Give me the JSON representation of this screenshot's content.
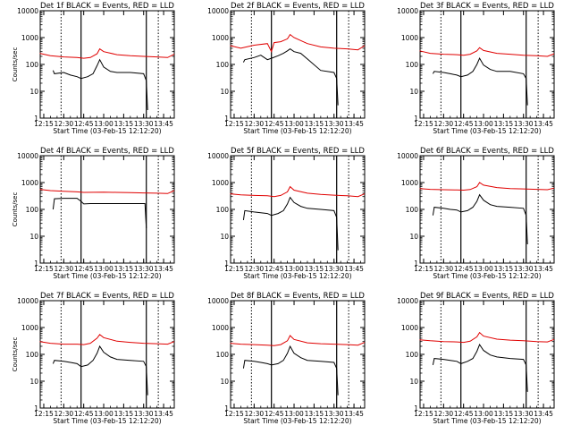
{
  "figure": {
    "xlabel": "Start Time (03-Feb-15 12:12:20)",
    "ylabel": "Counts/sec",
    "x_tick_labels": [
      "12:15",
      "12:30",
      "12:45",
      "13:00",
      "13:15",
      "13:30",
      "13:45"
    ],
    "y_tick_labels": [
      "1",
      "10",
      "100",
      "1000",
      "10000"
    ],
    "colors": {
      "events": "#000000",
      "lld": "#e00000",
      "axes": "#000000"
    }
  },
  "chart_data": [
    {
      "type": "line",
      "title": "Det 1f BLACK = Events, RED = LLD",
      "xlim": [
        "12:12:20",
        "13:53:00"
      ],
      "ylim": [
        1,
        10000
      ],
      "yscale": "log",
      "markers": [
        "12:43",
        "13:32"
      ],
      "dotted_lines": [
        "12:28",
        "13:41"
      ],
      "events": {
        "x": [
          "12:22",
          "12:23",
          "12:30",
          "12:35",
          "12:40",
          "12:43",
          "12:48",
          "12:52",
          "12:55",
          "12:57",
          "13:00",
          "13:05",
          "13:10",
          "13:20",
          "13:30",
          "13:32",
          "13:33"
        ],
        "y": [
          60,
          45,
          50,
          40,
          35,
          30,
          35,
          45,
          90,
          150,
          80,
          55,
          50,
          50,
          45,
          25,
          2
        ]
      },
      "lld": {
        "x": [
          "12:12",
          "12:20",
          "12:30",
          "12:40",
          "12:45",
          "12:50",
          "12:55",
          "12:57",
          "13:00",
          "13:10",
          "13:20",
          "13:30",
          "13:40",
          "13:48",
          "13:53"
        ],
        "y": [
          260,
          210,
          190,
          180,
          170,
          180,
          250,
          380,
          300,
          230,
          210,
          200,
          190,
          180,
          240
        ]
      }
    },
    {
      "type": "line",
      "title": "Det 2f BLACK = Events, RED = LLD",
      "xlim": [
        "12:12:20",
        "13:53:00"
      ],
      "ylim": [
        1,
        10000
      ],
      "yscale": "log",
      "markers": [
        "12:43",
        "13:32"
      ],
      "dotted_lines": [
        "12:28",
        "13:41"
      ],
      "events": {
        "x": [
          "12:22",
          "12:23",
          "12:30",
          "12:35",
          "12:40",
          "12:43",
          "12:48",
          "12:52",
          "12:55",
          "12:57",
          "13:00",
          "13:05",
          "13:10",
          "13:20",
          "13:30",
          "13:32",
          "13:33"
        ],
        "y": [
          120,
          150,
          180,
          220,
          150,
          170,
          210,
          260,
          320,
          380,
          300,
          260,
          160,
          60,
          50,
          30,
          3
        ]
      },
      "lld": {
        "x": [
          "12:12",
          "12:20",
          "12:30",
          "12:40",
          "12:43",
          "12:45",
          "12:50",
          "12:55",
          "12:57",
          "13:00",
          "13:10",
          "13:20",
          "13:30",
          "13:40",
          "13:48",
          "13:53"
        ],
        "y": [
          500,
          400,
          520,
          600,
          300,
          650,
          700,
          900,
          1300,
          1000,
          600,
          450,
          400,
          380,
          350,
          500
        ]
      }
    },
    {
      "type": "line",
      "title": "Det 3f BLACK = Events, RED = LLD",
      "xlim": [
        "12:12:20",
        "13:53:00"
      ],
      "ylim": [
        1,
        10000
      ],
      "yscale": "log",
      "markers": [
        "12:43",
        "13:32"
      ],
      "dotted_lines": [
        "12:28",
        "13:41"
      ],
      "events": {
        "x": [
          "12:22",
          "12:23",
          "12:30",
          "12:35",
          "12:40",
          "12:43",
          "12:48",
          "12:52",
          "12:55",
          "12:57",
          "13:00",
          "13:05",
          "13:10",
          "13:20",
          "13:30",
          "13:32",
          "13:33"
        ],
        "y": [
          45,
          55,
          50,
          45,
          40,
          35,
          40,
          55,
          100,
          170,
          95,
          65,
          55,
          55,
          45,
          30,
          3
        ]
      },
      "lld": {
        "x": [
          "12:12",
          "12:20",
          "12:30",
          "12:40",
          "12:45",
          "12:50",
          "12:55",
          "12:57",
          "13:00",
          "13:10",
          "13:20",
          "13:30",
          "13:40",
          "13:48",
          "13:53"
        ],
        "y": [
          320,
          260,
          240,
          230,
          220,
          240,
          320,
          420,
          330,
          260,
          240,
          220,
          210,
          200,
          250
        ]
      }
    },
    {
      "type": "line",
      "title": "Det 4f BLACK = Events, RED = LLD",
      "xlim": [
        "12:12:20",
        "13:53:00"
      ],
      "ylim": [
        1,
        10000
      ],
      "yscale": "log",
      "markers": [
        "12:43",
        "13:32"
      ],
      "dotted_lines": [
        "12:28",
        "13:41"
      ],
      "events": {
        "x": [
          "12:22",
          "12:23",
          "12:30",
          "12:35",
          "12:40",
          "12:43",
          "12:45",
          "12:50",
          "13:00",
          "13:10",
          "13:20",
          "13:30",
          "13:31",
          "13:32"
        ],
        "y": [
          100,
          250,
          260,
          260,
          260,
          200,
          160,
          165,
          165,
          165,
          165,
          165,
          165,
          20
        ]
      },
      "lld": {
        "x": [
          "12:12",
          "12:20",
          "12:30",
          "12:40",
          "12:45",
          "13:00",
          "13:10",
          "13:20",
          "13:30",
          "13:40",
          "13:48",
          "13:53"
        ],
        "y": [
          560,
          500,
          470,
          450,
          430,
          440,
          430,
          420,
          410,
          400,
          390,
          500
        ]
      }
    },
    {
      "type": "line",
      "title": "Det 5f BLACK = Events, RED = LLD",
      "xlim": [
        "12:12:20",
        "13:53:00"
      ],
      "ylim": [
        1,
        10000
      ],
      "yscale": "log",
      "markers": [
        "12:43",
        "13:32"
      ],
      "dotted_lines": [
        "12:28",
        "13:41"
      ],
      "events": {
        "x": [
          "12:22",
          "12:23",
          "12:30",
          "12:35",
          "12:40",
          "12:43",
          "12:48",
          "12:52",
          "12:55",
          "12:57",
          "13:00",
          "13:05",
          "13:10",
          "13:20",
          "13:30",
          "13:32",
          "13:33"
        ],
        "y": [
          40,
          90,
          80,
          75,
          70,
          60,
          70,
          90,
          160,
          280,
          180,
          130,
          110,
          100,
          90,
          50,
          3
        ]
      },
      "lld": {
        "x": [
          "12:12",
          "12:20",
          "12:30",
          "12:40",
          "12:45",
          "12:50",
          "12:55",
          "12:57",
          "13:00",
          "13:10",
          "13:20",
          "13:30",
          "13:40",
          "13:48",
          "13:53"
        ],
        "y": [
          380,
          350,
          330,
          320,
          300,
          330,
          450,
          700,
          520,
          400,
          360,
          340,
          320,
          300,
          380
        ]
      }
    },
    {
      "type": "line",
      "title": "Det 6f BLACK = Events, RED = LLD",
      "xlim": [
        "12:12:20",
        "13:53:00"
      ],
      "ylim": [
        1,
        10000
      ],
      "yscale": "log",
      "markers": [
        "12:43",
        "13:32"
      ],
      "dotted_lines": [
        "12:28",
        "13:41"
      ],
      "events": {
        "x": [
          "12:22",
          "12:23",
          "12:30",
          "12:35",
          "12:40",
          "12:43",
          "12:48",
          "12:52",
          "12:55",
          "12:57",
          "13:00",
          "13:05",
          "13:10",
          "13:20",
          "13:30",
          "13:32",
          "13:33"
        ],
        "y": [
          60,
          120,
          110,
          100,
          95,
          80,
          90,
          120,
          200,
          350,
          220,
          150,
          130,
          120,
          110,
          60,
          5
        ]
      },
      "lld": {
        "x": [
          "12:12",
          "12:20",
          "12:30",
          "12:40",
          "12:45",
          "12:50",
          "12:55",
          "12:57",
          "13:00",
          "13:10",
          "13:20",
          "13:30",
          "13:40",
          "13:48",
          "13:53"
        ],
        "y": [
          600,
          560,
          540,
          530,
          520,
          550,
          700,
          1000,
          800,
          650,
          600,
          580,
          560,
          540,
          620
        ]
      }
    },
    {
      "type": "line",
      "title": "Det 7f BLACK = Events, RED = LLD",
      "xlim": [
        "12:12:20",
        "13:53:00"
      ],
      "ylim": [
        1,
        10000
      ],
      "yscale": "log",
      "markers": [
        "12:43",
        "13:32"
      ],
      "dotted_lines": [
        "12:28",
        "13:41"
      ],
      "events": {
        "x": [
          "12:22",
          "12:23",
          "12:30",
          "12:35",
          "12:40",
          "12:43",
          "12:48",
          "12:52",
          "12:55",
          "12:57",
          "13:00",
          "13:05",
          "13:10",
          "13:20",
          "13:30",
          "13:32",
          "13:33"
        ],
        "y": [
          45,
          60,
          55,
          50,
          45,
          35,
          40,
          60,
          110,
          200,
          120,
          80,
          65,
          60,
          55,
          35,
          3
        ]
      },
      "lld": {
        "x": [
          "12:12",
          "12:20",
          "12:30",
          "12:40",
          "12:45",
          "12:50",
          "12:55",
          "12:57",
          "13:00",
          "13:10",
          "13:20",
          "13:30",
          "13:40",
          "13:48",
          "13:53"
        ],
        "y": [
          300,
          260,
          240,
          240,
          230,
          260,
          400,
          550,
          420,
          310,
          280,
          260,
          250,
          240,
          300
        ]
      }
    },
    {
      "type": "line",
      "title": "Det 8f BLACK = Events, RED = LLD",
      "xlim": [
        "12:12:20",
        "13:53:00"
      ],
      "ylim": [
        1,
        10000
      ],
      "yscale": "log",
      "markers": [
        "12:43",
        "13:32"
      ],
      "dotted_lines": [
        "12:28",
        "13:41"
      ],
      "events": {
        "x": [
          "12:22",
          "12:23",
          "12:30",
          "12:35",
          "12:40",
          "12:43",
          "12:48",
          "12:52",
          "12:55",
          "12:57",
          "13:00",
          "13:05",
          "13:10",
          "13:20",
          "13:30",
          "13:32",
          "13:33"
        ],
        "y": [
          30,
          60,
          55,
          50,
          45,
          40,
          45,
          60,
          110,
          200,
          110,
          75,
          60,
          55,
          50,
          30,
          3
        ]
      },
      "lld": {
        "x": [
          "12:12",
          "12:20",
          "12:30",
          "12:40",
          "12:45",
          "12:50",
          "12:55",
          "12:57",
          "13:00",
          "13:10",
          "13:20",
          "13:30",
          "13:40",
          "13:48",
          "13:53"
        ],
        "y": [
          260,
          240,
          230,
          220,
          210,
          230,
          320,
          500,
          360,
          270,
          250,
          240,
          230,
          220,
          280
        ]
      }
    },
    {
      "type": "line",
      "title": "Det 9f BLACK = Events, RED = LLD",
      "xlim": [
        "12:12:20",
        "13:53:00"
      ],
      "ylim": [
        1,
        10000
      ],
      "yscale": "log",
      "markers": [
        "12:43",
        "13:32"
      ],
      "dotted_lines": [
        "12:28",
        "13:41"
      ],
      "events": {
        "x": [
          "12:22",
          "12:23",
          "12:30",
          "12:35",
          "12:40",
          "12:43",
          "12:48",
          "12:52",
          "12:55",
          "12:57",
          "13:00",
          "13:05",
          "13:10",
          "13:20",
          "13:30",
          "13:32",
          "13:33"
        ],
        "y": [
          40,
          70,
          65,
          60,
          55,
          45,
          55,
          70,
          130,
          230,
          140,
          95,
          80,
          70,
          65,
          40,
          4
        ]
      },
      "lld": {
        "x": [
          "12:12",
          "12:20",
          "12:30",
          "12:40",
          "12:45",
          "12:50",
          "12:55",
          "12:57",
          "13:00",
          "13:10",
          "13:20",
          "13:30",
          "13:40",
          "13:48",
          "13:53"
        ],
        "y": [
          350,
          320,
          300,
          290,
          280,
          310,
          450,
          650,
          480,
          370,
          340,
          320,
          300,
          290,
          360
        ]
      }
    }
  ]
}
